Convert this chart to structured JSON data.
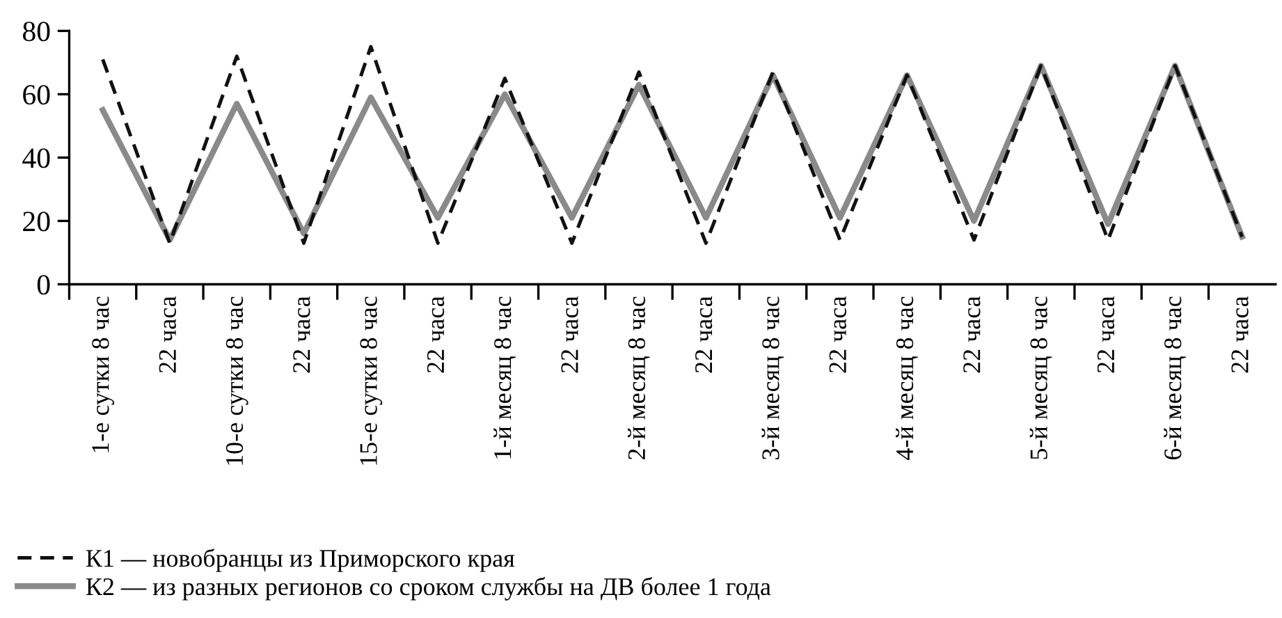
{
  "chart_data": {
    "type": "line",
    "categories": [
      "1-е сутки 8 час",
      "22 часа",
      "10-е сутки 8 час",
      "22 часа",
      "15-е сутки 8 час",
      "22 часа",
      "1-й месяц 8 час",
      "22 часа",
      "2-й месяц 8 час",
      "22 часа",
      "3-й месяц 8 час",
      "22 часа",
      "4-й месяц 8 час",
      "22 часа",
      "5-й месяц 8 час",
      "22 часа",
      "6-й месяц 8 час",
      "22 часа"
    ],
    "series": [
      {
        "name": "К1 — новобранцы из Приморского края",
        "color": "#111111",
        "line_style": "dashed",
        "values": [
          71,
          13,
          72,
          13,
          75,
          13,
          65,
          13,
          67,
          13,
          67,
          14,
          66,
          14,
          69,
          14,
          69,
          15
        ]
      },
      {
        "name": "К2 — из разных регионов со сроком службы на ДВ более 1 года",
        "color": "#8a8a8a",
        "line_style": "solid",
        "values": [
          55,
          14,
          57,
          16,
          59,
          21,
          60,
          21,
          63,
          21,
          66,
          21,
          66,
          20,
          69,
          19,
          69,
          15
        ]
      }
    ],
    "ylim": [
      0,
      80
    ],
    "yticks": [
      0,
      20,
      40,
      60,
      80
    ],
    "grid": false,
    "legend": "bottom"
  }
}
